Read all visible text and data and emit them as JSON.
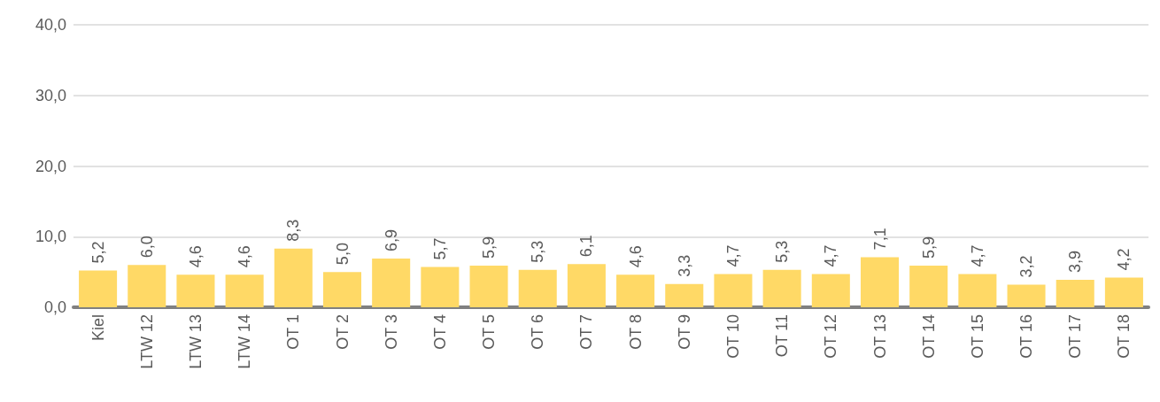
{
  "chart_data": {
    "type": "bar",
    "categories": [
      "Kiel",
      "LTW 12",
      "LTW 13",
      "LTW 14",
      "OT 1",
      "OT 2",
      "OT 3",
      "OT 4",
      "OT 5",
      "OT 6",
      "OT 7",
      "OT 8",
      "OT 9",
      "OT 10",
      "OT 11",
      "OT 12",
      "OT 13",
      "OT 14",
      "OT 15",
      "OT 16",
      "OT 17",
      "OT 18"
    ],
    "values": [
      5.2,
      6.0,
      4.6,
      4.6,
      8.3,
      5.0,
      6.9,
      5.7,
      5.9,
      5.3,
      6.1,
      4.6,
      3.3,
      4.7,
      5.3,
      4.7,
      7.1,
      5.9,
      4.7,
      3.2,
      3.9,
      4.2
    ],
    "value_labels": [
      "5,2",
      "6,0",
      "4,6",
      "4,6",
      "8,3",
      "5,0",
      "6,9",
      "5,7",
      "5,9",
      "5,3",
      "6,1",
      "4,6",
      "3,3",
      "4,7",
      "5,3",
      "4,7",
      "7,1",
      "5,9",
      "4,7",
      "3,2",
      "3,9",
      "4,2"
    ],
    "color": "#ffd966",
    "ylim": [
      0,
      40
    ],
    "yticks": [
      {
        "value": 0,
        "label": "0,0"
      },
      {
        "value": 10,
        "label": "10,0"
      },
      {
        "value": 20,
        "label": "20,0"
      },
      {
        "value": 30,
        "label": "30,0"
      },
      {
        "value": 40,
        "label": "40,0"
      }
    ],
    "grid": "y"
  }
}
